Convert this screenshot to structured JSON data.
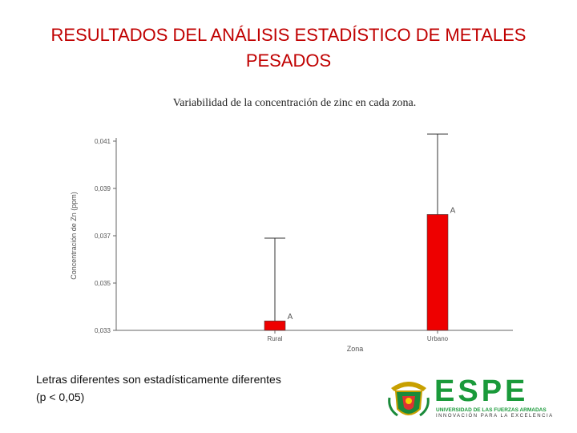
{
  "slide": {
    "title": "RESULTADOS DEL ANÁLISIS ESTADÍSTICO DE METALES PESADOS",
    "note_line1": "Letras diferentes son estadísticamente diferentes",
    "note_line2": "(p < 0,05)"
  },
  "logo": {
    "word": "ESPE",
    "line1": "UNIVERSIDAD DE LAS FUERZAS ARMADAS",
    "line2": "INNOVACIÓN PARA LA EXCELENCIA"
  },
  "chart_data": {
    "type": "bar",
    "title": "Variabilidad de la concentración de zinc en cada zona.",
    "xlabel": "Zona",
    "ylabel": "Concentración de Zn (ppm)",
    "categories": [
      "Rural",
      "Urbano"
    ],
    "values": [
      0.0334,
      0.0379
    ],
    "error_upper": [
      0.0369,
      0.0413
    ],
    "letters": [
      "A",
      "A"
    ],
    "yticks": [
      "0,033",
      "0,035",
      "0,037",
      "0,039",
      "0,041"
    ],
    "ylim": [
      0.033,
      0.041
    ],
    "bar_color": "#ee0000",
    "grid": false
  }
}
